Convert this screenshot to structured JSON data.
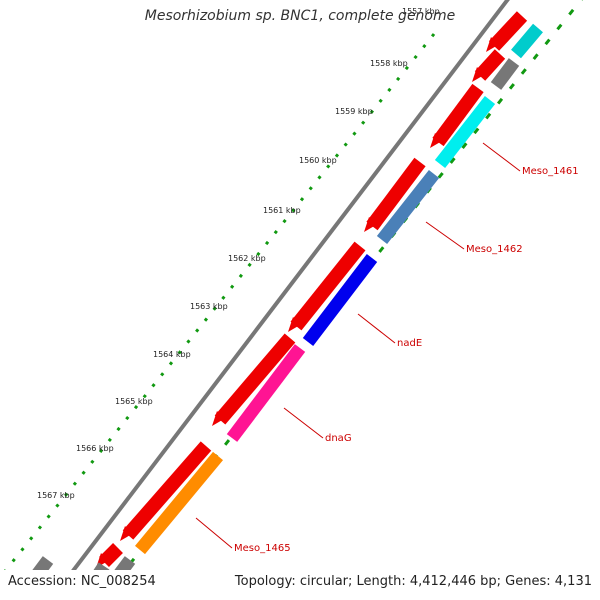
{
  "title": "Mesorhizobium sp. BNC1, complete genome",
  "footer": {
    "accession_label": "Accession: NC_008254",
    "summary": "Topology: circular; Length: 4,412,446 bp; Genes: 4,131"
  },
  "colors": {
    "backbone": "#777777",
    "ticks": "#119911",
    "label": "#cc0000",
    "cds_forward": "#ee0000"
  },
  "scale": {
    "unit": "kbp",
    "labels": [
      "1557 kbp",
      "1558 kbp",
      "1559 kbp",
      "1560 kbp",
      "1561 kbp",
      "1562 kbp",
      "1563 kbp",
      "1564 kbp",
      "1565 kbp",
      "1566 kbp",
      "1567 kbp"
    ]
  },
  "labeled_genes": [
    {
      "name": "Meso_1461",
      "color": "#00eeee"
    },
    {
      "name": "Meso_1462",
      "color": "#4a80b8"
    },
    {
      "name": "nadE",
      "color": "#0000ee"
    },
    {
      "name": "dnaG",
      "color": "#ff1493"
    },
    {
      "name": "Meso_1465",
      "color": "#ff8c00"
    }
  ],
  "other_features": [
    {
      "color": "#00cccc"
    },
    {
      "color": "#777777"
    },
    {
      "color": "#777777"
    },
    {
      "color": "#777777"
    },
    {
      "color": "#777777"
    },
    {
      "color": "#0000ff"
    }
  ]
}
